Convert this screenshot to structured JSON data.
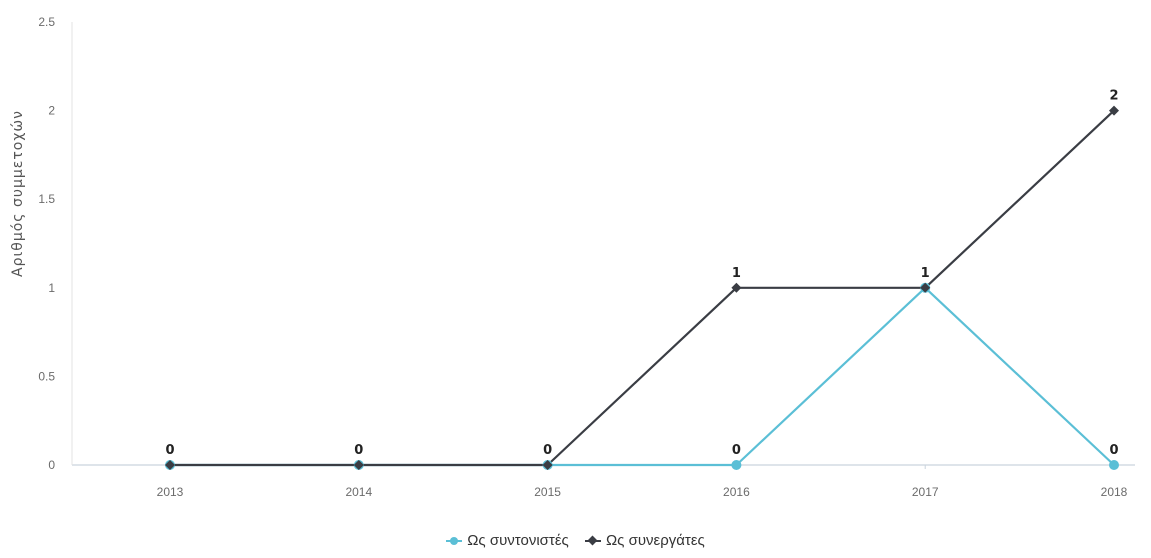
{
  "chart_data": {
    "type": "line",
    "x": [
      "2013",
      "2014",
      "2015",
      "2016",
      "2017",
      "2018"
    ],
    "ylabel": "Αριθμός συμμετοχών",
    "xlabel": "",
    "ylim": [
      0,
      2.5
    ],
    "yticks": [
      0,
      0.5,
      1,
      1.5,
      2,
      2.5
    ],
    "ytick_labels": [
      "0",
      "0.5",
      "1",
      "1.5",
      "2",
      "2.5"
    ],
    "grid": false,
    "legend_position": "bottom",
    "series": [
      {
        "name": "Ως συντονιστές",
        "values": [
          0,
          0,
          0,
          0,
          1,
          0
        ],
        "color": "#5bbfd6",
        "marker": "circle",
        "data_labels": [
          "",
          "",
          "",
          "0",
          "",
          "0"
        ]
      },
      {
        "name": "Ως συνεργάτες",
        "values": [
          0,
          0,
          0,
          1,
          1,
          2
        ],
        "color": "#3a3d44",
        "marker": "diamond",
        "data_labels": [
          "0",
          "0",
          "0",
          "1",
          "1",
          "2"
        ]
      }
    ]
  }
}
